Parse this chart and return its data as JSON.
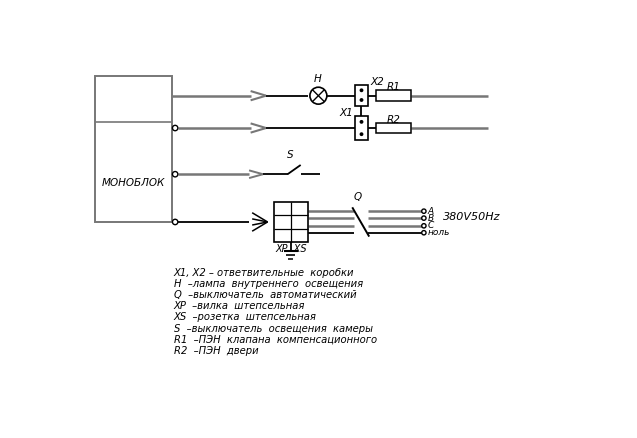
{
  "bg_color": "#ffffff",
  "line_color": "#000000",
  "gray_color": "#777777",
  "fig_width": 6.37,
  "fig_height": 4.38,
  "legend_lines": [
    "X1, X2 – ответвительные  коробки",
    "H  –лампа  внутреннего  освещения",
    "Q  –выключатель  автоматический",
    "XP  –вилка  штепсельная",
    "XS  –розетка  штепсельная",
    "S  –выключатель  освещения  камеры",
    "R1  –ПЭН  клапана  компенсационного",
    "R2  –ПЭН  двери"
  ]
}
